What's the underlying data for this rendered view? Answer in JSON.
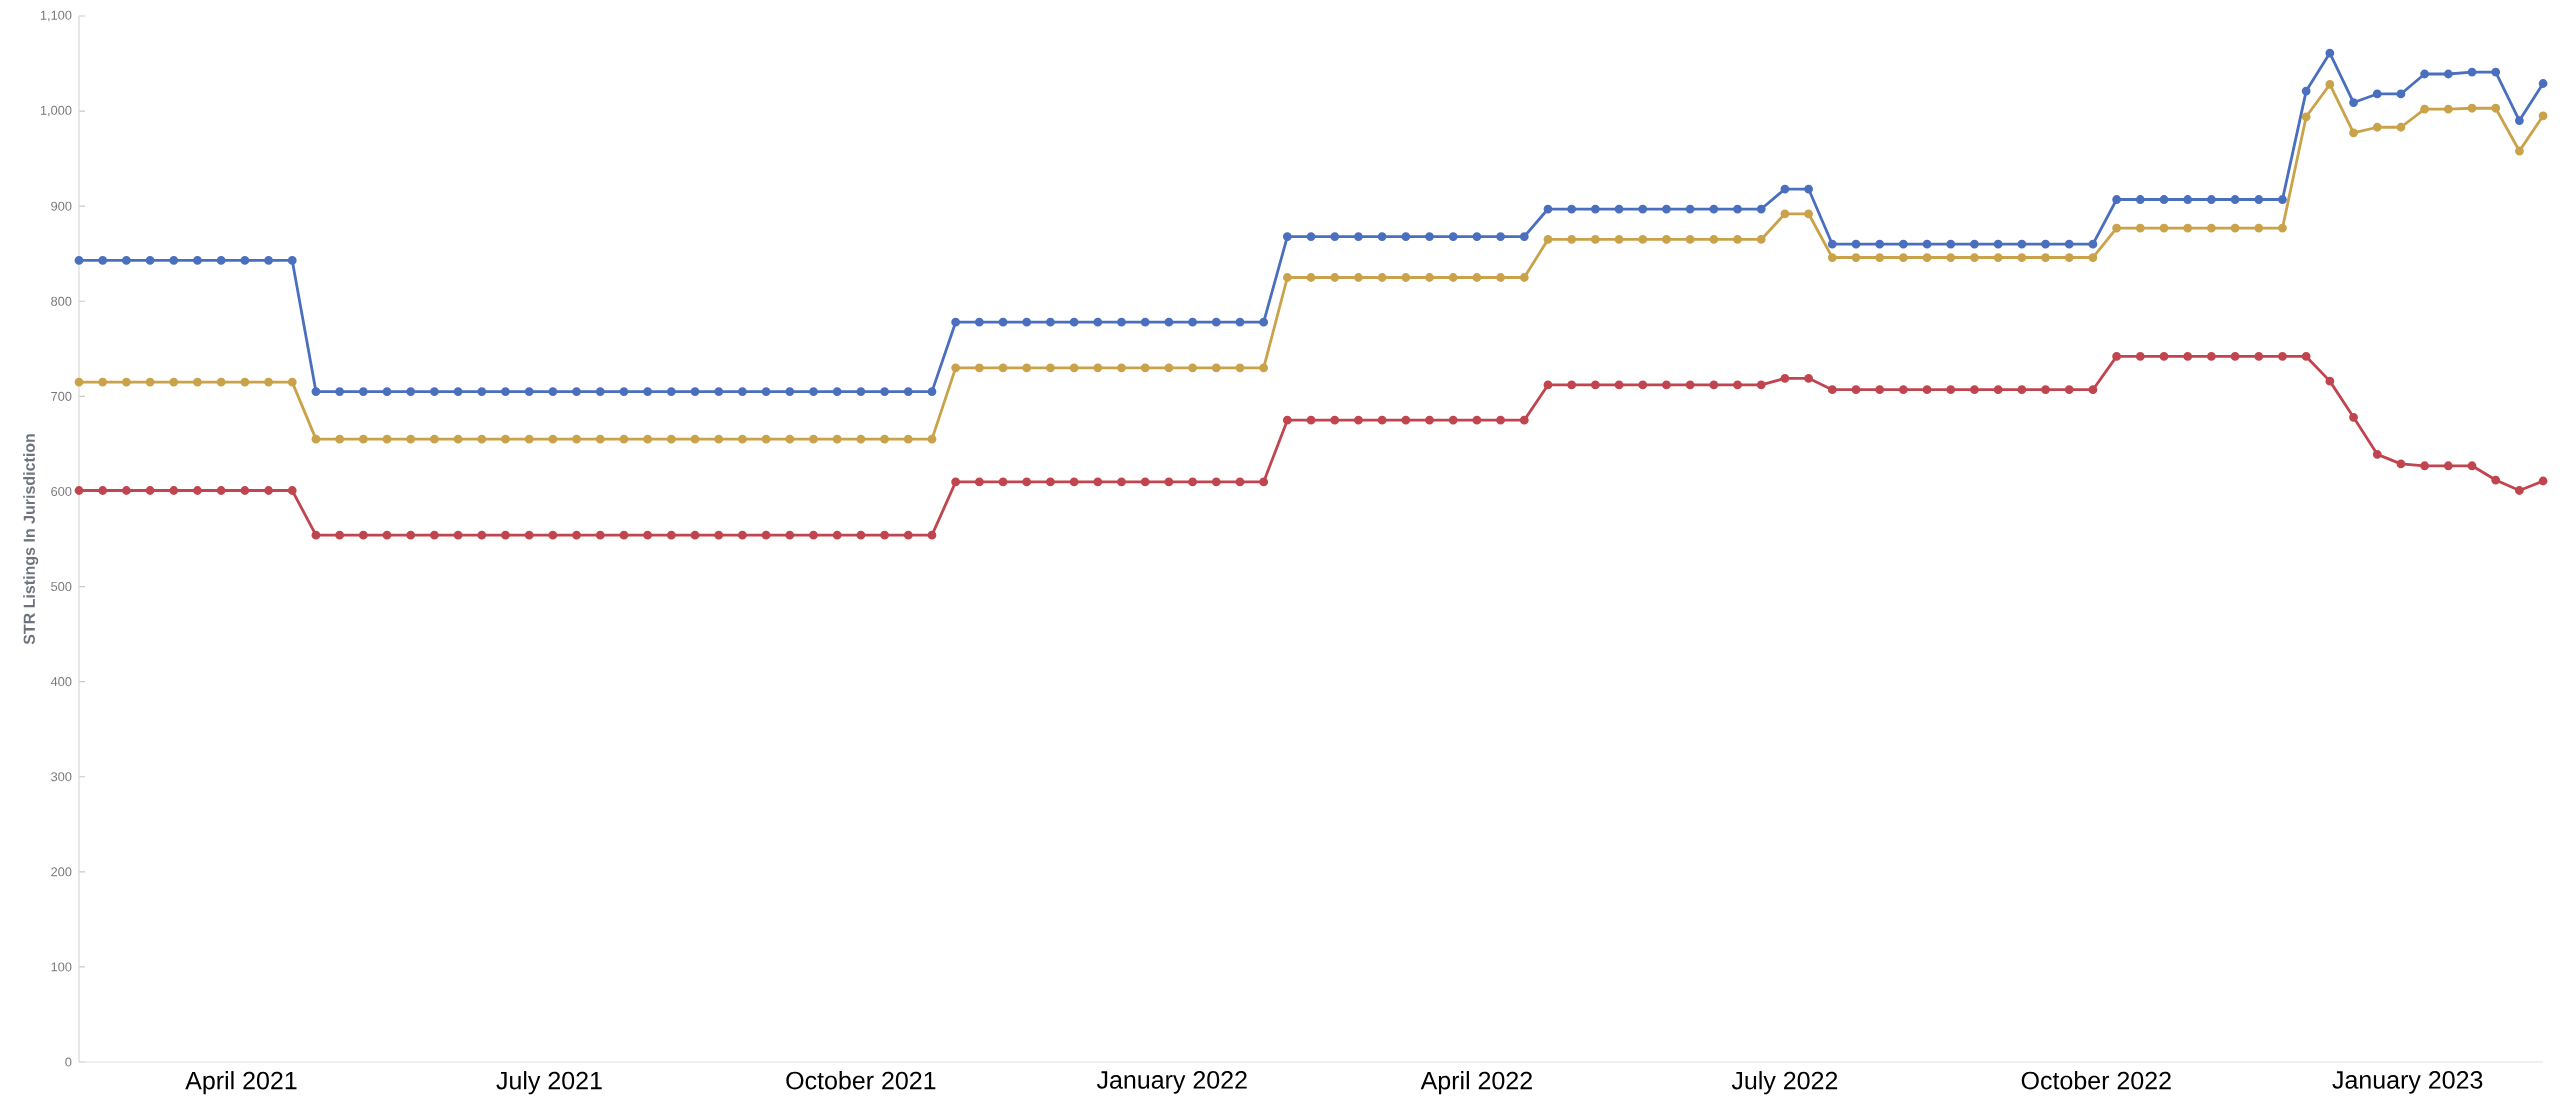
{
  "chart_data": {
    "type": "line",
    "ylabel": "STR Listings In Jurisdiction",
    "x": [
      "2021-02-12",
      "2021-02-19",
      "2021-02-26",
      "2021-03-05",
      "2021-03-12",
      "2021-03-19",
      "2021-03-26",
      "2021-04-02",
      "2021-04-09",
      "2021-04-16",
      "2021-04-23",
      "2021-04-30",
      "2021-05-07",
      "2021-05-14",
      "2021-05-21",
      "2021-05-28",
      "2021-06-04",
      "2021-06-11",
      "2021-06-18",
      "2021-06-25",
      "2021-07-02",
      "2021-07-09",
      "2021-07-16",
      "2021-07-23",
      "2021-07-30",
      "2021-08-06",
      "2021-08-13",
      "2021-08-20",
      "2021-08-27",
      "2021-09-03",
      "2021-09-10",
      "2021-09-17",
      "2021-09-24",
      "2021-10-01",
      "2021-10-08",
      "2021-10-15",
      "2021-10-22",
      "2021-10-29",
      "2021-11-05",
      "2021-11-12",
      "2021-11-19",
      "2021-11-26",
      "2021-12-03",
      "2021-12-10",
      "2021-12-17",
      "2021-12-24",
      "2021-12-31",
      "2022-01-07",
      "2022-01-14",
      "2022-01-21",
      "2022-01-28",
      "2022-02-04",
      "2022-02-11",
      "2022-02-18",
      "2022-02-25",
      "2022-03-04",
      "2022-03-11",
      "2022-03-18",
      "2022-03-25",
      "2022-04-01",
      "2022-04-08",
      "2022-04-15",
      "2022-04-22",
      "2022-04-29",
      "2022-05-06",
      "2022-05-13",
      "2022-05-20",
      "2022-05-27",
      "2022-06-03",
      "2022-06-10",
      "2022-06-17",
      "2022-06-24",
      "2022-07-01",
      "2022-07-08",
      "2022-07-15",
      "2022-07-22",
      "2022-07-29",
      "2022-08-05",
      "2022-08-12",
      "2022-08-19",
      "2022-08-26",
      "2022-09-02",
      "2022-09-09",
      "2022-09-16",
      "2022-09-23",
      "2022-09-30",
      "2022-10-07",
      "2022-10-14",
      "2022-10-21",
      "2022-10-28",
      "2022-11-04",
      "2022-11-11",
      "2022-11-18",
      "2022-11-25",
      "2022-12-02",
      "2022-12-09",
      "2022-12-16",
      "2022-12-23",
      "2022-12-30",
      "2023-01-06",
      "2023-01-13",
      "2023-01-20",
      "2023-01-27",
      "2023-02-03",
      "2023-02-10"
    ],
    "series": [
      {
        "color": "#4a6fbe",
        "values": [
          843,
          843,
          843,
          843,
          843,
          843,
          843,
          843,
          843,
          843,
          705,
          705,
          705,
          705,
          705,
          705,
          705,
          705,
          705,
          705,
          705,
          705,
          705,
          705,
          705,
          705,
          705,
          705,
          705,
          705,
          705,
          705,
          705,
          705,
          705,
          705,
          705,
          778,
          778,
          778,
          778,
          778,
          778,
          778,
          778,
          778,
          778,
          778,
          778,
          778,
          778,
          868,
          868,
          868,
          868,
          868,
          868,
          868,
          868,
          868,
          868,
          868,
          897,
          897,
          897,
          897,
          897,
          897,
          897,
          897,
          897,
          897,
          918,
          918,
          860,
          860,
          860,
          860,
          860,
          860,
          860,
          860,
          860,
          860,
          860,
          860,
          907,
          907,
          907,
          907,
          907,
          907,
          907,
          907,
          1021,
          1061,
          1009,
          1018,
          1018,
          1039,
          1039,
          1041,
          1041,
          990,
          1029
        ]
      },
      {
        "color": "#c9a24a",
        "values": [
          715,
          715,
          715,
          715,
          715,
          715,
          715,
          715,
          715,
          715,
          655,
          655,
          655,
          655,
          655,
          655,
          655,
          655,
          655,
          655,
          655,
          655,
          655,
          655,
          655,
          655,
          655,
          655,
          655,
          655,
          655,
          655,
          655,
          655,
          655,
          655,
          655,
          730,
          730,
          730,
          730,
          730,
          730,
          730,
          730,
          730,
          730,
          730,
          730,
          730,
          730,
          825,
          825,
          825,
          825,
          825,
          825,
          825,
          825,
          825,
          825,
          825,
          865,
          865,
          865,
          865,
          865,
          865,
          865,
          865,
          865,
          865,
          892,
          892,
          846,
          846,
          846,
          846,
          846,
          846,
          846,
          846,
          846,
          846,
          846,
          846,
          877,
          877,
          877,
          877,
          877,
          877,
          877,
          877,
          994,
          1028,
          977,
          983,
          983,
          1002,
          1002,
          1003,
          1003,
          958,
          995
        ]
      },
      {
        "color": "#c0454f",
        "values": [
          601,
          601,
          601,
          601,
          601,
          601,
          601,
          601,
          601,
          601,
          554,
          554,
          554,
          554,
          554,
          554,
          554,
          554,
          554,
          554,
          554,
          554,
          554,
          554,
          554,
          554,
          554,
          554,
          554,
          554,
          554,
          554,
          554,
          554,
          554,
          554,
          554,
          610,
          610,
          610,
          610,
          610,
          610,
          610,
          610,
          610,
          610,
          610,
          610,
          610,
          610,
          675,
          675,
          675,
          675,
          675,
          675,
          675,
          675,
          675,
          675,
          675,
          712,
          712,
          712,
          712,
          712,
          712,
          712,
          712,
          712,
          712,
          719,
          719,
          707,
          707,
          707,
          707,
          707,
          707,
          707,
          707,
          707,
          707,
          707,
          707,
          742,
          742,
          742,
          742,
          742,
          742,
          742,
          742,
          742,
          716,
          678,
          639,
          629,
          627,
          627,
          627,
          612,
          601,
          611
        ]
      }
    ],
    "xlim": [
      "2021-02-12",
      "2023-02-10"
    ],
    "xticks": [
      {
        "value": "2021-04-01",
        "label": "April 2021"
      },
      {
        "value": "2021-07-01",
        "label": "July 2021"
      },
      {
        "value": "2021-10-01",
        "label": "October 2021"
      },
      {
        "value": "2022-01-01",
        "label": "January 2022"
      },
      {
        "value": "2022-04-01",
        "label": "April 2022"
      },
      {
        "value": "2022-07-01",
        "label": "July 2022"
      },
      {
        "value": "2022-10-01",
        "label": "October 2022"
      },
      {
        "value": "2023-01-01",
        "label": "January 2023"
      }
    ],
    "ylim": [
      0,
      1100
    ],
    "yticks": [
      0,
      100,
      200,
      300,
      400,
      500,
      600,
      700,
      800,
      900,
      {
        "value": 1000,
        "label": "1,000"
      },
      {
        "value": 1100,
        "label": "1,100"
      }
    ],
    "marker": "circle",
    "line_style": "solid"
  }
}
